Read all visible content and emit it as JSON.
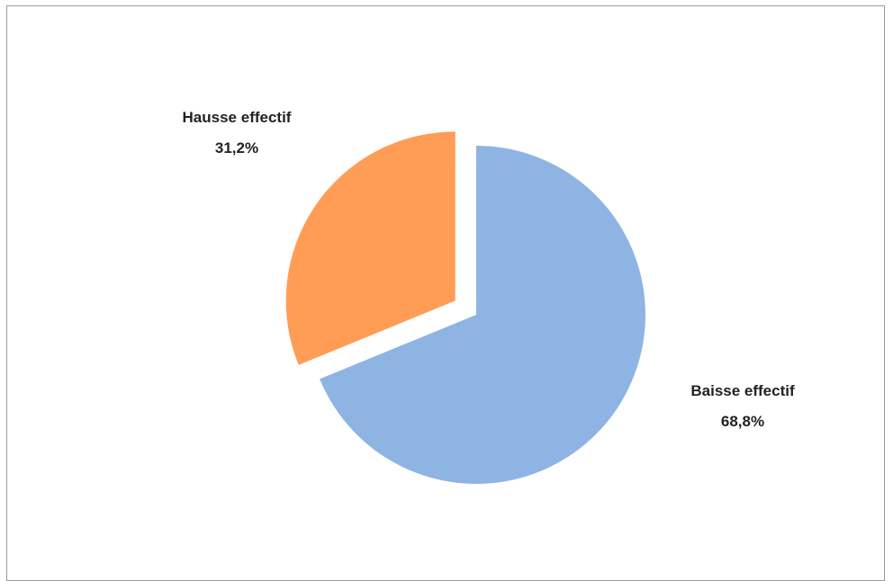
{
  "chart_data": {
    "type": "pie",
    "title": "",
    "slices": [
      {
        "label": "Baisse effectif",
        "value": 68.8,
        "value_label": "68,8%",
        "color": "#8EB4E3",
        "exploded": false
      },
      {
        "label": "Hausse effectif",
        "value": 31.2,
        "value_label": "31,2%",
        "color": "#FF9C55",
        "exploded": true
      }
    ],
    "start_angle_deg": 0,
    "direction": "clockwise",
    "legend": "none",
    "data_labels": "outside"
  }
}
